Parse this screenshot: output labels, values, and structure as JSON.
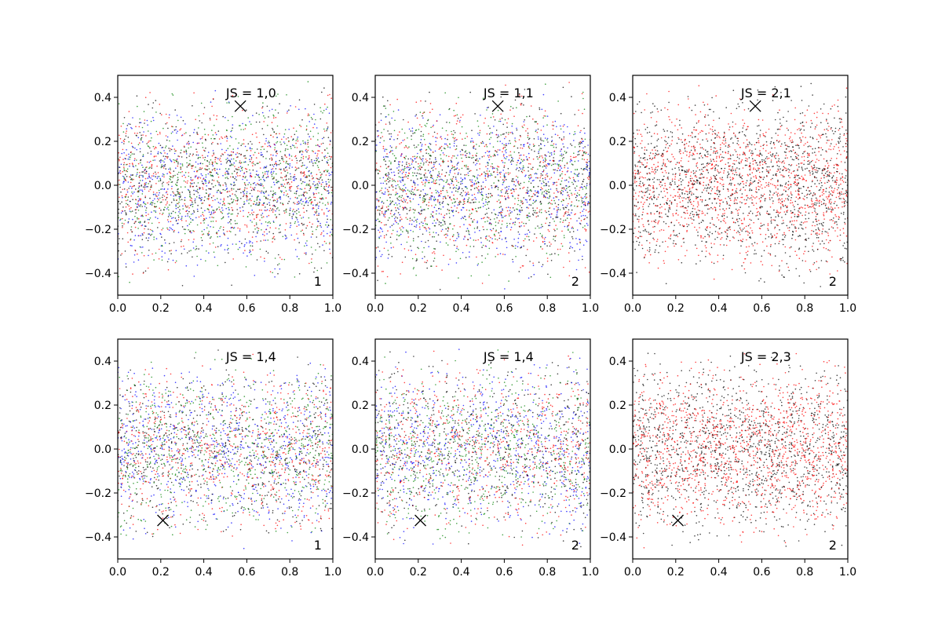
{
  "chart_data": [
    {
      "type": "scatter",
      "title": "JS = 1,0",
      "corner_label": "1",
      "xlim": [
        0.0,
        1.0
      ],
      "ylim": [
        -0.5,
        0.5
      ],
      "xticks": [
        "0.0",
        "0.2",
        "0.4",
        "0.6",
        "0.8",
        "1.0"
      ],
      "yticks": [
        "-0.4",
        "-0.2",
        "0.0",
        "0.2",
        "0.4"
      ],
      "series_colors": [
        "#0000ff",
        "#ff0000",
        "#008000",
        "#000000"
      ],
      "marker": {
        "x": 0.57,
        "y": 0.36,
        "symbol": "x"
      },
      "grid": false
    },
    {
      "type": "scatter",
      "title": "JS = 1,1",
      "corner_label": "2",
      "xlim": [
        0.0,
        1.0
      ],
      "ylim": [
        -0.5,
        0.5
      ],
      "xticks": [
        "0.0",
        "0.2",
        "0.4",
        "0.6",
        "0.8",
        "1.0"
      ],
      "yticks": [
        "-0.4",
        "-0.2",
        "0.0",
        "0.2",
        "0.4"
      ],
      "series_colors": [
        "#0000ff",
        "#ff0000",
        "#008000",
        "#000000"
      ],
      "marker": {
        "x": 0.57,
        "y": 0.36,
        "symbol": "x"
      },
      "grid": false
    },
    {
      "type": "scatter",
      "title": "JS = 2,1",
      "corner_label": "2",
      "xlim": [
        0.0,
        1.0
      ],
      "ylim": [
        -0.5,
        0.5
      ],
      "xticks": [
        "0.0",
        "0.2",
        "0.4",
        "0.6",
        "0.8",
        "1.0"
      ],
      "yticks": [
        "-0.4",
        "-0.2",
        "0.0",
        "0.2",
        "0.4"
      ],
      "series_colors": [
        "#ff0000",
        "#000000"
      ],
      "marker": {
        "x": 0.57,
        "y": 0.36,
        "symbol": "x"
      },
      "grid": false
    },
    {
      "type": "scatter",
      "title": "JS = 1,4",
      "corner_label": "1",
      "xlim": [
        0.0,
        1.0
      ],
      "ylim": [
        -0.5,
        0.5
      ],
      "xticks": [
        "0.0",
        "0.2",
        "0.4",
        "0.6",
        "0.8",
        "1.0"
      ],
      "yticks": [
        "-0.4",
        "-0.2",
        "0.0",
        "0.2",
        "0.4"
      ],
      "series_colors": [
        "#0000ff",
        "#ff0000",
        "#008000",
        "#000000"
      ],
      "marker": {
        "x": 0.21,
        "y": -0.325,
        "symbol": "x"
      },
      "grid": false
    },
    {
      "type": "scatter",
      "title": "JS = 1,4",
      "corner_label": "2",
      "xlim": [
        0.0,
        1.0
      ],
      "ylim": [
        -0.5,
        0.5
      ],
      "xticks": [
        "0.0",
        "0.2",
        "0.4",
        "0.6",
        "0.8",
        "1.0"
      ],
      "yticks": [
        "-0.4",
        "-0.2",
        "0.0",
        "0.2",
        "0.4"
      ],
      "series_colors": [
        "#0000ff",
        "#ff0000",
        "#008000",
        "#000000"
      ],
      "marker": {
        "x": 0.21,
        "y": -0.325,
        "symbol": "x"
      },
      "grid": false
    },
    {
      "type": "scatter",
      "title": "JS = 2,3",
      "corner_label": "2",
      "xlim": [
        0.0,
        1.0
      ],
      "ylim": [
        -0.5,
        0.5
      ],
      "xticks": [
        "0.0",
        "0.2",
        "0.4",
        "0.6",
        "0.8",
        "1.0"
      ],
      "yticks": [
        "-0.4",
        "-0.2",
        "0.0",
        "0.2",
        "0.4"
      ],
      "series_colors": [
        "#ff0000",
        "#000000"
      ],
      "marker": {
        "x": 0.21,
        "y": -0.325,
        "symbol": "x"
      },
      "grid": false
    }
  ]
}
